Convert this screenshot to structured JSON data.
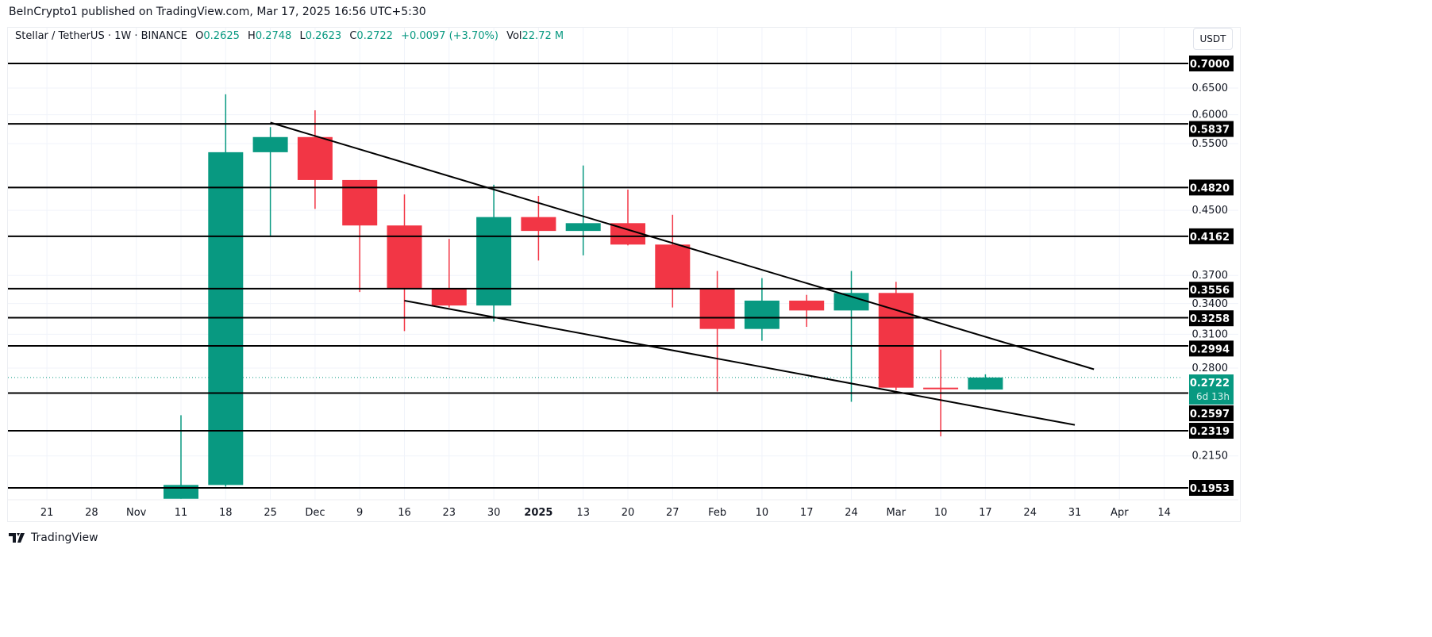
{
  "header": {
    "published": "BeInCrypto1 published on TradingView.com, Mar 17, 2025 16:56 UTC+5:30"
  },
  "legend": {
    "symbol": "Stellar / TetherUS · 1W · BINANCE",
    "o_label": "O",
    "o": "0.2625",
    "h_label": "H",
    "h": "0.2748",
    "l_label": "L",
    "l": "0.2623",
    "c_label": "C",
    "c": "0.2722",
    "change": "+0.0097 (+3.70%)",
    "vol_label": "Vol",
    "vol": "22.72 M"
  },
  "unit_button": "USDT",
  "footer": {
    "brand": "TradingView"
  },
  "colors": {
    "up": "#089981",
    "down": "#F23645",
    "level": "#000000",
    "grid": "#f0f3fa"
  },
  "chart_data": {
    "type": "candlestick",
    "title": "",
    "y_scale": "log",
    "ylim": [
      0.1953,
      0.7
    ],
    "grid": true,
    "x_ticks": [
      {
        "date": "2024-10-21",
        "label": "21"
      },
      {
        "date": "2024-10-28",
        "label": "28"
      },
      {
        "date": "2024-11-04",
        "label": "Nov"
      },
      {
        "date": "2024-11-11",
        "label": "11"
      },
      {
        "date": "2024-11-18",
        "label": "18"
      },
      {
        "date": "2024-11-25",
        "label": "25"
      },
      {
        "date": "2024-12-02",
        "label": "Dec"
      },
      {
        "date": "2024-12-09",
        "label": "9"
      },
      {
        "date": "2024-12-16",
        "label": "16"
      },
      {
        "date": "2024-12-23",
        "label": "23"
      },
      {
        "date": "2024-12-30",
        "label": "30"
      },
      {
        "date": "2025-01-06",
        "label": "2025"
      },
      {
        "date": "2025-01-13",
        "label": "13"
      },
      {
        "date": "2025-01-20",
        "label": "20"
      },
      {
        "date": "2025-01-27",
        "label": "27"
      },
      {
        "date": "2025-02-03",
        "label": "Feb"
      },
      {
        "date": "2025-02-10",
        "label": "10"
      },
      {
        "date": "2025-02-17",
        "label": "17"
      },
      {
        "date": "2025-02-24",
        "label": "24"
      },
      {
        "date": "2025-03-03",
        "label": "Mar"
      },
      {
        "date": "2025-03-10",
        "label": "10"
      },
      {
        "date": "2025-03-17",
        "label": "17"
      },
      {
        "date": "2025-03-24",
        "label": "24"
      },
      {
        "date": "2025-03-31",
        "label": "31"
      },
      {
        "date": "2025-04-07",
        "label": "Apr"
      },
      {
        "date": "2025-04-14",
        "label": "14"
      }
    ],
    "y_ticks": [
      "0.6500",
      "0.6000",
      "0.5500",
      "0.4500",
      "0.3700",
      "0.3400",
      "0.3100",
      "0.2800",
      "0.2150"
    ],
    "candles": [
      {
        "date": "2024-11-11",
        "o": 0.189,
        "h": 0.243,
        "l": 0.189,
        "c": 0.197
      },
      {
        "date": "2024-11-18",
        "o": 0.197,
        "h": 0.638,
        "l": 0.196,
        "c": 0.536
      },
      {
        "date": "2024-11-25",
        "o": 0.536,
        "h": 0.578,
        "l": 0.417,
        "c": 0.561
      },
      {
        "date": "2024-12-02",
        "o": 0.561,
        "h": 0.608,
        "l": 0.452,
        "c": 0.493
      },
      {
        "date": "2024-12-09",
        "o": 0.493,
        "h": 0.493,
        "l": 0.352,
        "c": 0.43
      },
      {
        "date": "2024-12-16",
        "o": 0.43,
        "h": 0.472,
        "l": 0.313,
        "c": 0.356
      },
      {
        "date": "2024-12-23",
        "o": 0.356,
        "h": 0.413,
        "l": 0.336,
        "c": 0.338
      },
      {
        "date": "2024-12-30",
        "o": 0.338,
        "h": 0.486,
        "l": 0.322,
        "c": 0.441
      },
      {
        "date": "2025-01-06",
        "o": 0.441,
        "h": 0.47,
        "l": 0.387,
        "c": 0.423
      },
      {
        "date": "2025-01-13",
        "o": 0.423,
        "h": 0.515,
        "l": 0.393,
        "c": 0.433
      },
      {
        "date": "2025-01-20",
        "o": 0.433,
        "h": 0.479,
        "l": 0.405,
        "c": 0.406
      },
      {
        "date": "2025-01-27",
        "o": 0.406,
        "h": 0.444,
        "l": 0.336,
        "c": 0.355
      },
      {
        "date": "2025-02-03",
        "o": 0.355,
        "h": 0.375,
        "l": 0.261,
        "c": 0.315
      },
      {
        "date": "2025-02-10",
        "o": 0.315,
        "h": 0.367,
        "l": 0.304,
        "c": 0.343
      },
      {
        "date": "2025-02-17",
        "o": 0.343,
        "h": 0.349,
        "l": 0.317,
        "c": 0.333
      },
      {
        "date": "2025-02-24",
        "o": 0.333,
        "h": 0.375,
        "l": 0.253,
        "c": 0.351
      },
      {
        "date": "2025-03-03",
        "o": 0.351,
        "h": 0.363,
        "l": 0.262,
        "c": 0.264
      },
      {
        "date": "2025-03-10",
        "o": 0.264,
        "h": 0.296,
        "l": 0.228,
        "c": 0.263
      },
      {
        "date": "2025-03-17",
        "o": 0.2625,
        "h": 0.2748,
        "l": 0.2623,
        "c": 0.2722
      }
    ],
    "levels": [
      "0.7000",
      "0.5837",
      "0.4820",
      "0.4162",
      "0.3556",
      "0.3258",
      "0.2994",
      "0.2597",
      "0.2319",
      "0.1953"
    ],
    "trendlines": [
      {
        "from": {
          "date": "2024-11-25",
          "price": 0.586
        },
        "to": {
          "date": "2025-04-03",
          "price": 0.279
        }
      },
      {
        "from": {
          "date": "2024-12-16",
          "price": 0.343
        },
        "to": {
          "date": "2025-03-31",
          "price": 0.236
        }
      }
    ],
    "last_price": {
      "value": "0.2722",
      "countdown": "6d 13h"
    }
  }
}
